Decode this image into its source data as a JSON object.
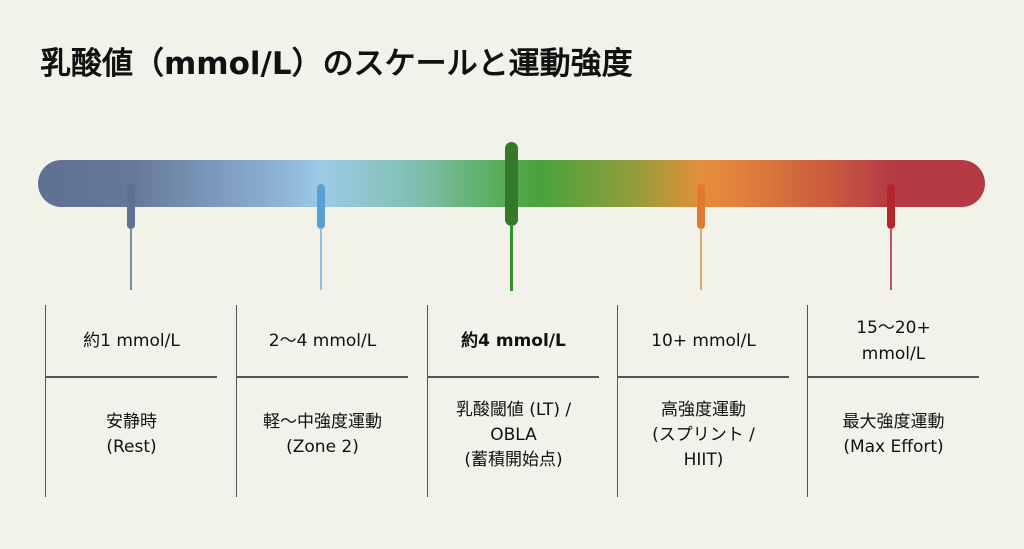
{
  "title": "乳酸値（mmol/L）のスケールと運動強度",
  "colors": {
    "rest": "#5f7190",
    "zone2": "#5aa0d0",
    "lt": "#3a8f2c",
    "hiit": "#e3863a",
    "max": "#b3303a"
  },
  "levels": [
    {
      "value": "約1 mmol/L",
      "description": "安静時\n(Rest)"
    },
    {
      "value": "2〜4 mmol/L",
      "description": "軽〜中強度運動\n(Zone 2)"
    },
    {
      "value": "約4 mmol/L",
      "description": "乳酸閾値 (LT) /\nOBLA\n(蓄積開始点)"
    },
    {
      "value": "10+ mmol/L",
      "description": "高強度運動\n(スプリント /\nHIIT)"
    },
    {
      "value": "15〜20+\nmmol/L",
      "description": "最大強度運動\n(Max Effort)"
    }
  ]
}
